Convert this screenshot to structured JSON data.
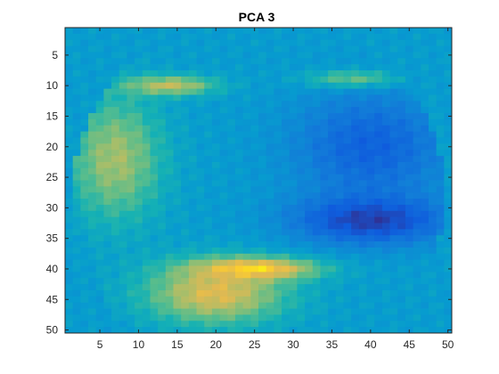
{
  "chart_data": {
    "type": "heatmap",
    "title": "PCA 3",
    "xlabel": "",
    "ylabel": "",
    "grid": false,
    "legend": "none",
    "colormap": "parula",
    "xlim": [
      0.5,
      50.5
    ],
    "ylim": [
      0.5,
      50.5
    ],
    "y_direction": "reversed",
    "xticks": [
      5,
      10,
      15,
      20,
      25,
      30,
      35,
      40,
      45,
      50
    ],
    "yticks": [
      5,
      10,
      15,
      20,
      25,
      30,
      35,
      40,
      45,
      50
    ],
    "grid_size": [
      50,
      50
    ],
    "face_features": [
      {
        "feature": "background",
        "value": 0.45
      },
      {
        "feature": "left-cheek",
        "center": [
          7,
          22
        ],
        "radii": [
          6,
          10
        ],
        "value": 0.75
      },
      {
        "feature": "left-brow",
        "center": [
          14,
          10
        ],
        "radii": [
          6,
          1.6
        ],
        "value": 0.8
      },
      {
        "feature": "right-brow",
        "center": [
          38,
          9
        ],
        "radii": [
          6,
          1.5
        ],
        "value": 0.78
      },
      {
        "feature": "right-eye-region",
        "center": [
          40,
          20
        ],
        "radii": [
          10,
          9
        ],
        "value": 0.18
      },
      {
        "feature": "right-cheek-dark",
        "center": [
          40,
          32
        ],
        "radii": [
          10,
          4
        ],
        "value": 0.06
      },
      {
        "feature": "chin-lower-lip",
        "center": [
          20,
          44
        ],
        "radii": [
          9,
          5
        ],
        "value": 0.85
      },
      {
        "feature": "mouth-top-lip",
        "center": [
          25,
          40
        ],
        "radii": [
          8,
          1.8
        ],
        "value": 0.95
      }
    ]
  }
}
